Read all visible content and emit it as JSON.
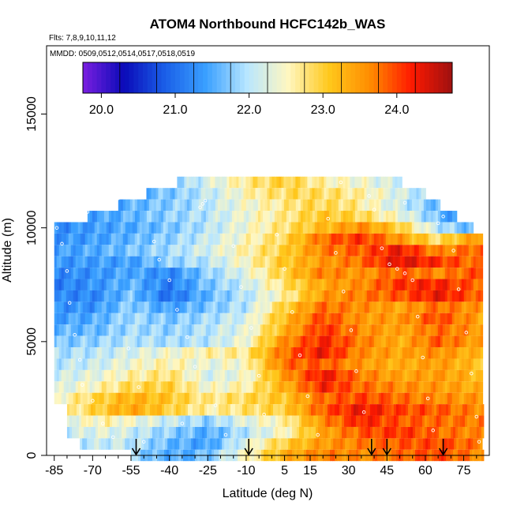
{
  "chart_data": {
    "type": "heatmap",
    "title": "ATOM4 Northbound HCFC142b_WAS",
    "subtitle_flights": "Flts: 7,8,9,10,11,12",
    "subtitle_dates": "MMDD: 0509,0512,0514,0517,0518,0519",
    "xlabel": "Latitude (deg N)",
    "ylabel": "Altitude (m)",
    "xlim": [
      -88,
      85
    ],
    "ylim": [
      0,
      18000
    ],
    "x_ticks": [
      -85,
      -70,
      -55,
      -40,
      -25,
      -10,
      5,
      15,
      30,
      45,
      60,
      75
    ],
    "x_ticklabels": [
      "-85",
      "-70",
      "-55",
      "-40",
      "-25",
      "-10",
      "5",
      "15",
      "30",
      "45",
      "60",
      "75"
    ],
    "x_minor_ticks": [
      -80,
      -75,
      -65,
      -60,
      -50,
      -45,
      -35,
      -30,
      -20,
      -15,
      -5,
      0,
      10,
      20,
      25,
      35,
      40,
      50,
      55,
      65,
      70,
      80
    ],
    "y_ticks": [
      0,
      5000,
      10000,
      15000
    ],
    "y_ticklabels": [
      "0",
      "5000",
      "10000",
      "15000"
    ],
    "colorbar": {
      "range": [
        19.75,
        24.75
      ],
      "ticks": [
        20.0,
        21.0,
        22.0,
        23.0,
        24.0
      ],
      "ticklabels": [
        "20.0",
        "21.0",
        "22.0",
        "23.0",
        "24.0"
      ],
      "colors": [
        "#7a1fe0",
        "#0a0ab8",
        "#1a5fe8",
        "#3aa0ff",
        "#b8e6ff",
        "#fff7c0",
        "#ffc81c",
        "#ff8c00",
        "#ff1a00",
        "#9e1010"
      ]
    },
    "profile_arrows_lat": [
      -53,
      -9,
      39,
      45,
      67
    ],
    "layers": [
      {
        "alt": 12000,
        "lat_start": -37,
        "lat_end": 50,
        "lat_nodes": [
          -37,
          -25,
          -10,
          5,
          20,
          35,
          50
        ],
        "values": [
          21.8,
          22.2,
          22.7,
          23.0,
          22.6,
          22.4,
          22.1
        ]
      },
      {
        "alt": 11500,
        "lat_start": -49,
        "lat_end": 60,
        "lat_nodes": [
          -49,
          -35,
          -20,
          -5,
          10,
          25,
          40,
          60
        ],
        "values": [
          21.6,
          21.8,
          22.2,
          22.7,
          22.9,
          22.8,
          22.5,
          21.9
        ]
      },
      {
        "alt": 11000,
        "lat_start": -60,
        "lat_end": 65,
        "lat_nodes": [
          -60,
          -45,
          -30,
          -15,
          0,
          15,
          30,
          45,
          65
        ],
        "values": [
          21.5,
          21.7,
          21.9,
          22.3,
          22.6,
          22.9,
          22.8,
          22.3,
          21.6
        ]
      },
      {
        "alt": 10500,
        "lat_start": -72,
        "lat_end": 72,
        "lat_nodes": [
          -72,
          -55,
          -40,
          -25,
          -10,
          5,
          20,
          35,
          50,
          72
        ],
        "values": [
          21.4,
          21.6,
          21.8,
          22.0,
          22.4,
          22.7,
          23.1,
          22.9,
          22.4,
          21.3
        ]
      },
      {
        "alt": 10000,
        "lat_start": -85,
        "lat_end": 78,
        "lat_nodes": [
          -85,
          -70,
          -55,
          -40,
          -25,
          -10,
          5,
          20,
          35,
          50,
          65,
          78
        ],
        "values": [
          21.2,
          21.4,
          21.5,
          21.7,
          22.0,
          22.4,
          22.8,
          23.2,
          23.6,
          23.0,
          22.0,
          21.6
        ]
      },
      {
        "alt": 9500,
        "lat_start": -85,
        "lat_end": 82,
        "lat_nodes": [
          -85,
          -70,
          -55,
          -40,
          -25,
          -10,
          5,
          20,
          35,
          50,
          65,
          82
        ],
        "values": [
          21.3,
          21.4,
          21.6,
          21.8,
          22.1,
          22.5,
          22.9,
          23.8,
          24.1,
          23.5,
          22.8,
          23.6
        ]
      },
      {
        "alt": 9000,
        "lat_start": -85,
        "lat_end": 82,
        "lat_nodes": [
          -85,
          -70,
          -55,
          -40,
          -25,
          -10,
          5,
          20,
          35,
          50,
          65,
          82
        ],
        "values": [
          21.4,
          21.5,
          21.7,
          21.9,
          22.2,
          22.6,
          23.0,
          23.7,
          23.9,
          24.3,
          23.6,
          23.9
        ]
      },
      {
        "alt": 8500,
        "lat_start": -85,
        "lat_end": 82,
        "lat_nodes": [
          -85,
          -70,
          -55,
          -40,
          -25,
          -10,
          5,
          20,
          35,
          50,
          65,
          82
        ],
        "values": [
          21.3,
          21.4,
          21.4,
          21.8,
          22.0,
          22.5,
          23.1,
          23.5,
          23.8,
          24.4,
          24.1,
          23.7
        ]
      },
      {
        "alt": 8000,
        "lat_start": -85,
        "lat_end": 82,
        "lat_nodes": [
          -85,
          -70,
          -55,
          -40,
          -25,
          -10,
          5,
          20,
          35,
          50,
          65,
          82
        ],
        "values": [
          21.2,
          21.3,
          21.5,
          21.2,
          21.8,
          22.3,
          23.0,
          23.7,
          23.5,
          23.9,
          23.6,
          24.0
        ]
      },
      {
        "alt": 7500,
        "lat_start": -85,
        "lat_end": 82,
        "lat_nodes": [
          -85,
          -70,
          -55,
          -40,
          -25,
          -10,
          5,
          20,
          35,
          50,
          65,
          82
        ],
        "values": [
          21.1,
          21.3,
          21.6,
          21.1,
          21.7,
          22.1,
          22.8,
          23.4,
          23.6,
          24.1,
          24.2,
          23.8
        ]
      },
      {
        "alt": 7000,
        "lat_start": -85,
        "lat_end": 82,
        "lat_nodes": [
          -85,
          -70,
          -55,
          -40,
          -25,
          -10,
          5,
          20,
          35,
          50,
          65,
          82
        ],
        "values": [
          21.2,
          21.2,
          21.7,
          21.0,
          21.6,
          22.0,
          22.6,
          23.5,
          23.7,
          23.9,
          24.3,
          23.8
        ]
      },
      {
        "alt": 6500,
        "lat_start": -85,
        "lat_end": 82,
        "lat_nodes": [
          -85,
          -70,
          -55,
          -40,
          -25,
          -10,
          5,
          20,
          35,
          50,
          65,
          82
        ],
        "values": [
          21.3,
          21.3,
          21.8,
          21.4,
          21.7,
          22.0,
          23.0,
          23.8,
          23.6,
          23.4,
          23.8,
          23.5
        ]
      },
      {
        "alt": 6000,
        "lat_start": -85,
        "lat_end": 82,
        "lat_nodes": [
          -85,
          -70,
          -55,
          -40,
          -25,
          -10,
          5,
          20,
          35,
          50,
          65,
          82
        ],
        "values": [
          21.4,
          21.5,
          21.9,
          21.7,
          21.9,
          22.2,
          23.2,
          24.0,
          23.5,
          23.5,
          24.0,
          23.4
        ]
      },
      {
        "alt": 5500,
        "lat_start": -85,
        "lat_end": 82,
        "lat_nodes": [
          -85,
          -70,
          -55,
          -40,
          -25,
          -10,
          5,
          20,
          35,
          50,
          65,
          82
        ],
        "values": [
          21.6,
          21.6,
          21.9,
          21.8,
          22.0,
          22.3,
          23.3,
          24.1,
          23.6,
          23.4,
          23.8,
          23.5
        ]
      },
      {
        "alt": 5000,
        "lat_start": -85,
        "lat_end": 82,
        "lat_nodes": [
          -85,
          -70,
          -55,
          -40,
          -25,
          -10,
          5,
          20,
          35,
          50,
          65,
          82
        ],
        "values": [
          21.7,
          21.8,
          22.0,
          21.9,
          22.0,
          22.4,
          23.6,
          24.2,
          23.7,
          23.3,
          23.9,
          23.4
        ]
      },
      {
        "alt": 4500,
        "lat_start": -85,
        "lat_end": 82,
        "lat_nodes": [
          -85,
          -70,
          -55,
          -40,
          -25,
          -10,
          5,
          20,
          35,
          50,
          65,
          82
        ],
        "values": [
          21.9,
          22.0,
          22.2,
          22.4,
          22.6,
          22.7,
          23.8,
          24.3,
          23.6,
          23.4,
          23.6,
          23.2
        ]
      },
      {
        "alt": 4000,
        "lat_start": -85,
        "lat_end": 82,
        "lat_nodes": [
          -85,
          -70,
          -55,
          -40,
          -25,
          -10,
          5,
          20,
          35,
          50,
          65,
          82
        ],
        "values": [
          22.0,
          22.1,
          22.4,
          22.6,
          22.3,
          22.5,
          23.8,
          23.9,
          23.5,
          23.3,
          23.5,
          23.1
        ]
      },
      {
        "alt": 3500,
        "lat_start": -85,
        "lat_end": 82,
        "lat_nodes": [
          -85,
          -70,
          -55,
          -40,
          -25,
          -10,
          5,
          20,
          35,
          50,
          65,
          82
        ],
        "values": [
          22.1,
          22.3,
          22.6,
          22.8,
          22.2,
          22.4,
          23.5,
          24.3,
          23.7,
          23.4,
          23.5,
          23.2
        ]
      },
      {
        "alt": 3000,
        "lat_start": -85,
        "lat_end": 82,
        "lat_nodes": [
          -85,
          -70,
          -55,
          -40,
          -25,
          -10,
          5,
          20,
          35,
          50,
          65,
          82
        ],
        "values": [
          22.2,
          22.5,
          22.9,
          23.0,
          22.4,
          22.6,
          23.3,
          24.2,
          23.8,
          23.6,
          23.5,
          23.3
        ]
      },
      {
        "alt": 2500,
        "lat_start": -85,
        "lat_end": 82,
        "lat_nodes": [
          -85,
          -70,
          -55,
          -40,
          -25,
          -10,
          5,
          20,
          35,
          50,
          65,
          82
        ],
        "values": [
          22.4,
          22.9,
          23.3,
          23.1,
          22.7,
          22.9,
          23.1,
          23.8,
          24.0,
          23.8,
          23.6,
          23.5
        ]
      },
      {
        "alt": 2000,
        "lat_start": -80,
        "lat_end": 82,
        "lat_nodes": [
          -80,
          -65,
          -55,
          -40,
          -25,
          -10,
          5,
          20,
          35,
          50,
          65,
          82
        ],
        "values": [
          22.6,
          23.1,
          23.4,
          23.0,
          22.6,
          22.8,
          23.0,
          23.9,
          24.3,
          24.0,
          23.9,
          23.6
        ]
      },
      {
        "alt": 1500,
        "lat_start": -80,
        "lat_end": 82,
        "lat_nodes": [
          -80,
          -65,
          -55,
          -40,
          -25,
          -10,
          5,
          20,
          35,
          50,
          65,
          82
        ],
        "values": [
          22.3,
          22.6,
          22.4,
          22.1,
          21.8,
          22.3,
          22.6,
          23.6,
          24.2,
          23.9,
          23.8,
          23.7
        ]
      },
      {
        "alt": 1000,
        "lat_start": -80,
        "lat_end": 82,
        "lat_nodes": [
          -80,
          -65,
          -55,
          -40,
          -25,
          -10,
          5,
          20,
          35,
          50,
          65,
          82
        ],
        "values": [
          22.1,
          22.3,
          22.1,
          21.8,
          21.5,
          22.0,
          22.5,
          23.4,
          23.9,
          24.1,
          23.8,
          23.6
        ]
      },
      {
        "alt": 500,
        "lat_start": -75,
        "lat_end": 82,
        "lat_nodes": [
          -75,
          -60,
          -50,
          -40,
          -25,
          -10,
          5,
          20,
          35,
          50,
          65,
          82
        ],
        "values": [
          22.0,
          22.1,
          21.9,
          21.6,
          21.4,
          22.3,
          23.0,
          23.5,
          23.7,
          23.9,
          24.0,
          23.7
        ]
      },
      {
        "alt": 0,
        "lat_start": -55,
        "lat_end": 82,
        "lat_nodes": [
          -55,
          -45,
          -35,
          -25,
          -10,
          5,
          20,
          35,
          50,
          65,
          82
        ],
        "values": [
          21.9,
          21.6,
          21.5,
          21.7,
          22.5,
          23.3,
          23.7,
          23.6,
          23.8,
          24.0,
          23.6
        ]
      }
    ],
    "sample_points": [
      {
        "lat": -84,
        "alt": 10000
      },
      {
        "lat": -78,
        "alt": 10500
      },
      {
        "lat": -72,
        "alt": 10700
      },
      {
        "lat": -66,
        "alt": 11000
      },
      {
        "lat": -60,
        "alt": 11300
      },
      {
        "lat": -28,
        "alt": 10900
      },
      {
        "lat": -27,
        "alt": 11050
      },
      {
        "lat": -26,
        "alt": 11200
      },
      {
        "lat": -82,
        "alt": 9300
      },
      {
        "lat": -80,
        "alt": 8100
      },
      {
        "lat": -79,
        "alt": 6700
      },
      {
        "lat": -77,
        "alt": 5300
      },
      {
        "lat": -75,
        "alt": 4200
      },
      {
        "lat": -74,
        "alt": 3100
      },
      {
        "lat": -70,
        "alt": 2400
      },
      {
        "lat": -66,
        "alt": 1400
      },
      {
        "lat": -62,
        "alt": 800
      },
      {
        "lat": -50,
        "alt": 600
      },
      {
        "lat": -46,
        "alt": 9400
      },
      {
        "lat": -44,
        "alt": 8600
      },
      {
        "lat": -40,
        "alt": 7700
      },
      {
        "lat": -37,
        "alt": 6400
      },
      {
        "lat": -33,
        "alt": 5200
      },
      {
        "lat": -30,
        "alt": 3900
      },
      {
        "lat": -22,
        "alt": 2200
      },
      {
        "lat": -18,
        "alt": 900
      },
      {
        "lat": -15,
        "alt": 9200
      },
      {
        "lat": -12,
        "alt": 7400
      },
      {
        "lat": -8,
        "alt": 5600
      },
      {
        "lat": -5,
        "alt": 3500
      },
      {
        "lat": -3,
        "alt": 1800
      },
      {
        "lat": 2,
        "alt": 9700
      },
      {
        "lat": 5,
        "alt": 8200
      },
      {
        "lat": 8,
        "alt": 6300
      },
      {
        "lat": 11,
        "alt": 4400
      },
      {
        "lat": 14,
        "alt": 2600
      },
      {
        "lat": 18,
        "alt": 900
      },
      {
        "lat": 22,
        "alt": 10400
      },
      {
        "lat": 25,
        "alt": 8900
      },
      {
        "lat": 28,
        "alt": 7200
      },
      {
        "lat": 31,
        "alt": 5500
      },
      {
        "lat": 33,
        "alt": 3700
      },
      {
        "lat": 36,
        "alt": 1900
      },
      {
        "lat": 40,
        "alt": 10800
      },
      {
        "lat": 43,
        "alt": 9100
      },
      {
        "lat": 46,
        "alt": 8400
      },
      {
        "lat": 49,
        "alt": 8200
      },
      {
        "lat": 52,
        "alt": 8000
      },
      {
        "lat": 55,
        "alt": 7700
      },
      {
        "lat": 57,
        "alt": 6100
      },
      {
        "lat": 59,
        "alt": 4300
      },
      {
        "lat": 61,
        "alt": 2500
      },
      {
        "lat": 63,
        "alt": 1100
      },
      {
        "lat": 65,
        "alt": 10200
      },
      {
        "lat": 67,
        "alt": 10500
      },
      {
        "lat": 69,
        "alt": 10900
      },
      {
        "lat": 71,
        "alt": 9000
      },
      {
        "lat": 73,
        "alt": 7300
      },
      {
        "lat": 76,
        "alt": 5400
      },
      {
        "lat": 78,
        "alt": 3600
      },
      {
        "lat": 80,
        "alt": 1700
      },
      {
        "lat": 81,
        "alt": 600
      },
      {
        "lat": -56,
        "alt": 4700
      },
      {
        "lat": -52,
        "alt": 3000
      },
      {
        "lat": -35,
        "alt": 1400
      },
      {
        "lat": 27,
        "alt": 12000
      },
      {
        "lat": 38,
        "alt": 11400
      },
      {
        "lat": 52,
        "alt": 11100
      }
    ]
  }
}
